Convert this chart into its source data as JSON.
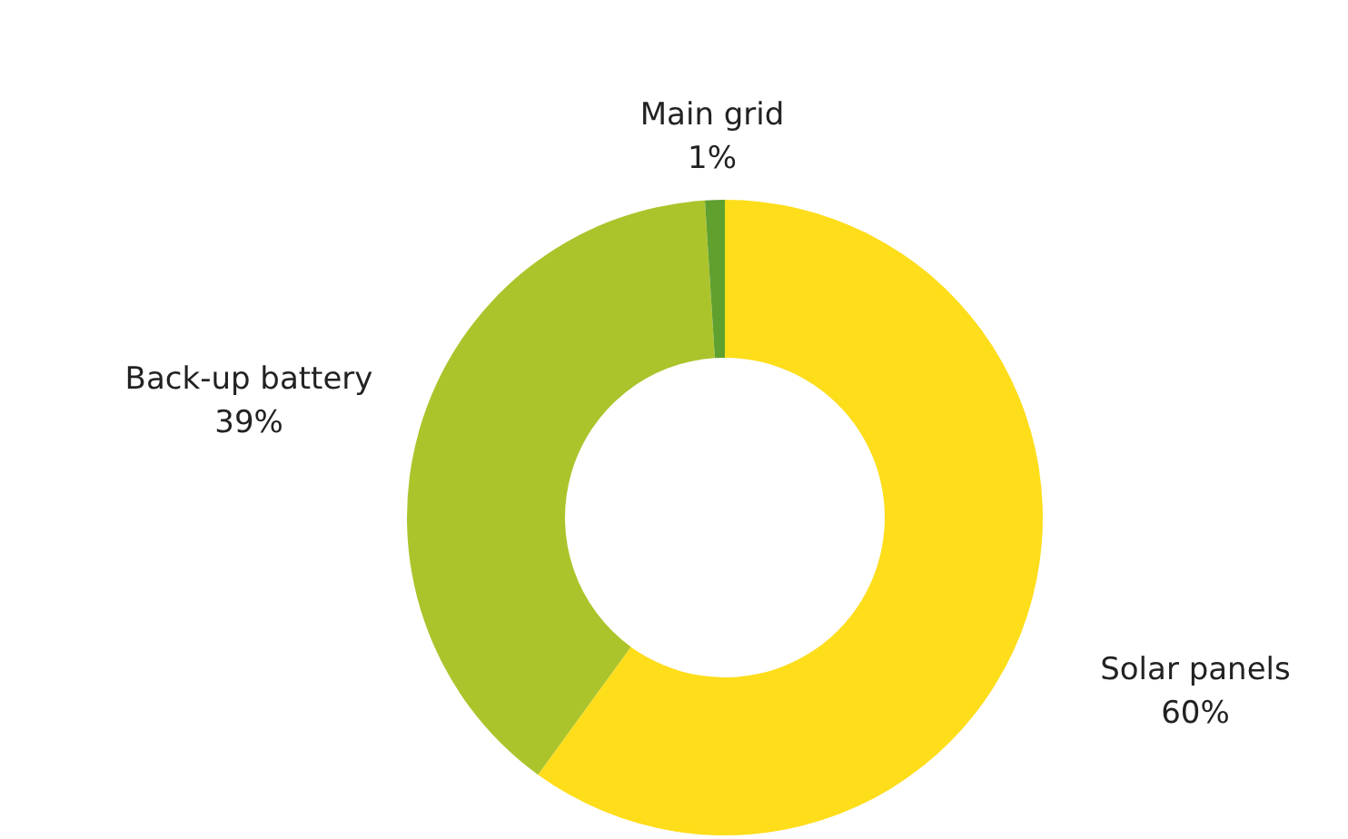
{
  "chart_data": {
    "type": "donut",
    "categories": [
      "Solar panels",
      "Back-up battery",
      "Main grid"
    ],
    "values": [
      60,
      39,
      1
    ],
    "value_labels": [
      "60%",
      "39%",
      "1%"
    ],
    "colors": [
      "#fedd1b",
      "#acc42b",
      "#5fa02f"
    ]
  }
}
